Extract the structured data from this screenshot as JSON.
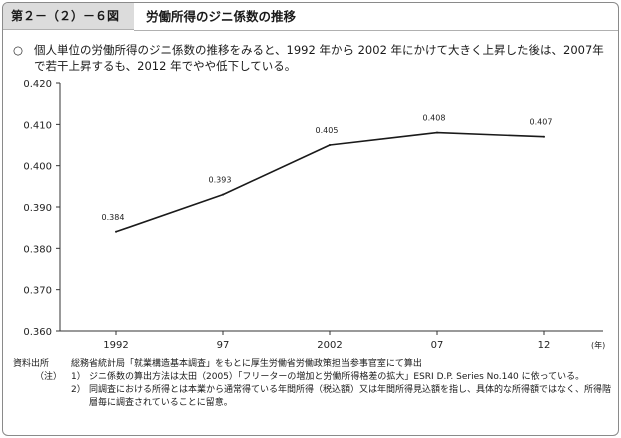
{
  "header": {
    "figure_label": "第２－（２）－６図",
    "title": "労働所得のジニ係数の推移"
  },
  "summary": {
    "bullet": "○",
    "text": "個人単位の労働所得のジニ係数の推移をみると、1992 年から 2002 年にかけて大きく上昇した後は、2007年で若干上昇するも、2012 年でやや低下している。"
  },
  "chart_data": {
    "type": "line",
    "categories": [
      "1992",
      "97",
      "2002",
      "07",
      "12"
    ],
    "x_unit": "(年)",
    "values": [
      0.384,
      0.393,
      0.405,
      0.408,
      0.407
    ],
    "data_labels": [
      "0.384",
      "0.393",
      "0.405",
      "0.408",
      "0.407"
    ],
    "ylim": [
      0.36,
      0.42
    ],
    "yticks": [
      "0.420",
      "0.410",
      "0.400",
      "0.390",
      "0.380",
      "0.370",
      "0.360"
    ],
    "grid": false,
    "colors": {
      "line": "#1a1a1a",
      "axis": "#333333"
    }
  },
  "notes": {
    "source_label": "資料出所",
    "source_text": "総務省統計局「就業構造基本調査」をもとに厚生労働省労働政策担当参事官室にて算出",
    "notes_label": "（注）",
    "items": [
      {
        "num": "1）",
        "text": "ジニ係数の算出方法は太田（2005）「フリーターの増加と労働所得格差の拡大」ESRI D.P. Series No.140 に依っている。"
      },
      {
        "num": "2）",
        "text": "同調査における所得とは本業から通常得ている年間所得（税込額）又は年間所得見込額を指し、具体的な所得額ではなく、所得階層毎に調査されていることに留意。"
      }
    ]
  }
}
